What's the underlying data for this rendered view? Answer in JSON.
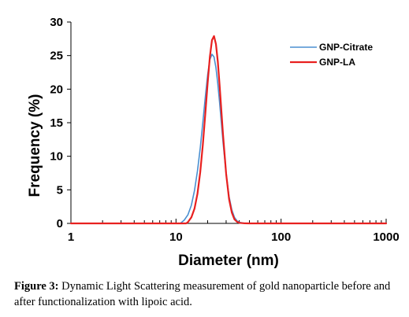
{
  "chart_data": {
    "type": "line",
    "xlabel": "Diameter (nm)",
    "ylabel": "Frequency (%)",
    "xscale": "log",
    "xlim": [
      1,
      1000
    ],
    "ylim": [
      0,
      30
    ],
    "x_ticks": [
      "1",
      "10",
      "100",
      "1000"
    ],
    "y_ticks": [
      "0",
      "5",
      "10",
      "15",
      "20",
      "25",
      "30"
    ],
    "legend_position": "top-right",
    "series": [
      {
        "name": "GNP-Citrate",
        "color": "#4a8fd0",
        "x": [
          1,
          11,
          12,
          13,
          14,
          15,
          16,
          17,
          18,
          19,
          20,
          21,
          22,
          23,
          24,
          25,
          26,
          28,
          30,
          32,
          34,
          36,
          38,
          40,
          45,
          50,
          1000
        ],
        "y": [
          0,
          0,
          0.5,
          1.3,
          2.7,
          4.9,
          7.8,
          11.2,
          15.0,
          18.8,
          22.1,
          24.4,
          25.2,
          24.8,
          23.2,
          20.8,
          18.0,
          12.2,
          7.4,
          4.0,
          2.0,
          0.9,
          0.4,
          0.15,
          0.02,
          0,
          0
        ]
      },
      {
        "name": "GNP-LA",
        "color": "#e8201f",
        "x": [
          1,
          12.5,
          13,
          14,
          15,
          16,
          17,
          18,
          19,
          20,
          21,
          22,
          23,
          24,
          25,
          26,
          28,
          30,
          32,
          34,
          36,
          38,
          40,
          45,
          50,
          1000
        ],
        "y": [
          0,
          0,
          0.2,
          0.9,
          2.2,
          4.4,
          7.6,
          11.7,
          16.3,
          20.9,
          24.8,
          27.3,
          27.9,
          26.7,
          24.1,
          20.6,
          13.3,
          7.4,
          3.6,
          1.6,
          0.6,
          0.25,
          0.08,
          0.01,
          0,
          0
        ]
      }
    ]
  },
  "caption": {
    "label": "Figure 3:",
    "text": " Dynamic Light Scattering measurement of gold nanoparticle before and after functionalization with lipoic acid."
  }
}
